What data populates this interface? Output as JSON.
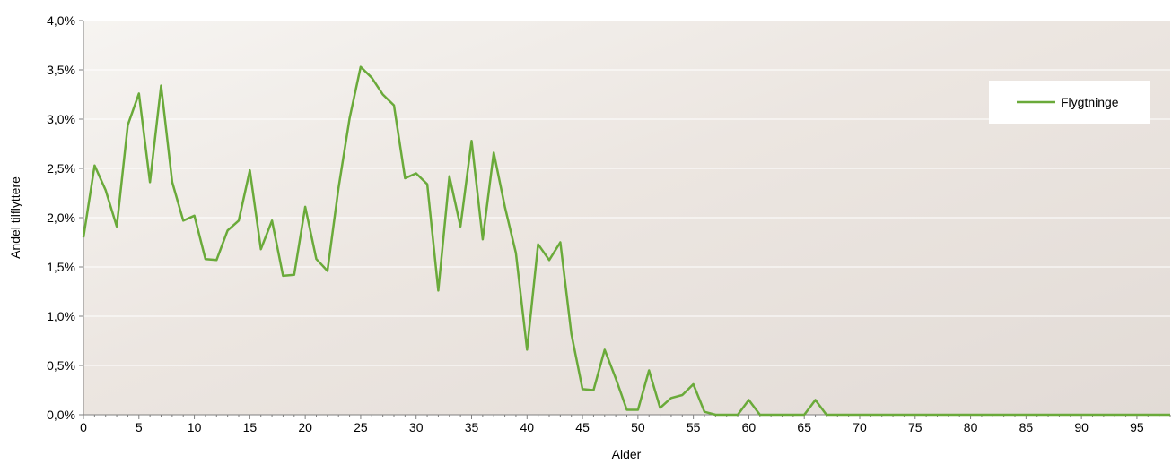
{
  "chart_data": {
    "type": "line",
    "title": "",
    "xlabel": "Alder",
    "ylabel": "Andel tilflyttere",
    "xlim": [
      0,
      98
    ],
    "ylim": [
      0,
      4.0
    ],
    "x_ticks": [
      0,
      5,
      10,
      15,
      20,
      25,
      30,
      35,
      40,
      45,
      50,
      55,
      60,
      65,
      70,
      75,
      80,
      85,
      90,
      95
    ],
    "x_tick_labels": [
      "0",
      "5",
      "10",
      "15",
      "20",
      "25",
      "30",
      "35",
      "40",
      "45",
      "50",
      "55",
      "60",
      "65",
      "70",
      "75",
      "80",
      "85",
      "90",
      "95"
    ],
    "y_ticks": [
      0,
      0.5,
      1.0,
      1.5,
      2.0,
      2.5,
      3.0,
      3.5,
      4.0
    ],
    "y_tick_labels": [
      "0,0%",
      "0,5%",
      "1,0%",
      "1,5%",
      "2,0%",
      "2,5%",
      "3,0%",
      "3,5%",
      "4,0%"
    ],
    "grid": "horizontal",
    "legend_position": "top-right",
    "series": [
      {
        "name": "Flygtninge",
        "color": "#6aaa3a",
        "x": [
          0,
          1,
          2,
          3,
          4,
          5,
          6,
          7,
          8,
          9,
          10,
          11,
          12,
          13,
          14,
          15,
          16,
          17,
          18,
          19,
          20,
          21,
          22,
          23,
          24,
          25,
          26,
          27,
          28,
          29,
          30,
          31,
          32,
          33,
          34,
          35,
          36,
          37,
          38,
          39,
          40,
          41,
          42,
          43,
          44,
          45,
          46,
          47,
          48,
          49,
          50,
          51,
          52,
          53,
          54,
          55,
          56,
          57,
          58,
          59,
          60,
          61,
          62,
          63,
          64,
          65,
          66,
          67,
          68,
          69,
          70,
          71,
          72,
          73,
          74,
          75,
          76,
          77,
          78,
          79,
          80,
          81,
          82,
          83,
          84,
          85,
          86,
          87,
          88,
          89,
          90,
          91,
          92,
          93,
          94,
          95,
          96,
          97,
          98
        ],
        "values": [
          1.8,
          2.53,
          2.28,
          1.91,
          2.94,
          3.26,
          2.36,
          3.34,
          2.36,
          1.97,
          2.02,
          1.58,
          1.57,
          1.87,
          1.97,
          2.48,
          1.68,
          1.97,
          1.41,
          1.42,
          2.11,
          1.58,
          1.46,
          2.3,
          3.01,
          3.53,
          3.42,
          3.25,
          3.14,
          2.4,
          2.45,
          2.34,
          1.26,
          2.42,
          1.91,
          2.78,
          1.78,
          2.66,
          2.11,
          1.64,
          0.66,
          1.73,
          1.57,
          1.75,
          0.82,
          0.26,
          0.25,
          0.66,
          0.37,
          0.05,
          0.05,
          0.45,
          0.07,
          0.17,
          0.2,
          0.31,
          0.03,
          0.0,
          0.0,
          0.0,
          0.15,
          0.0,
          0.0,
          0.0,
          0.0,
          0.0,
          0.15,
          0.0,
          0.0,
          0.0,
          0.0,
          0.0,
          0.0,
          0.0,
          0.0,
          0.0,
          0.0,
          0.0,
          0.0,
          0.0,
          0.0,
          0.0,
          0.0,
          0.0,
          0.0,
          0.0,
          0.0,
          0.0,
          0.0,
          0.0,
          0.0,
          0.0,
          0.0,
          0.0,
          0.0,
          0.0,
          0.0,
          0.0,
          0.0
        ]
      }
    ]
  }
}
